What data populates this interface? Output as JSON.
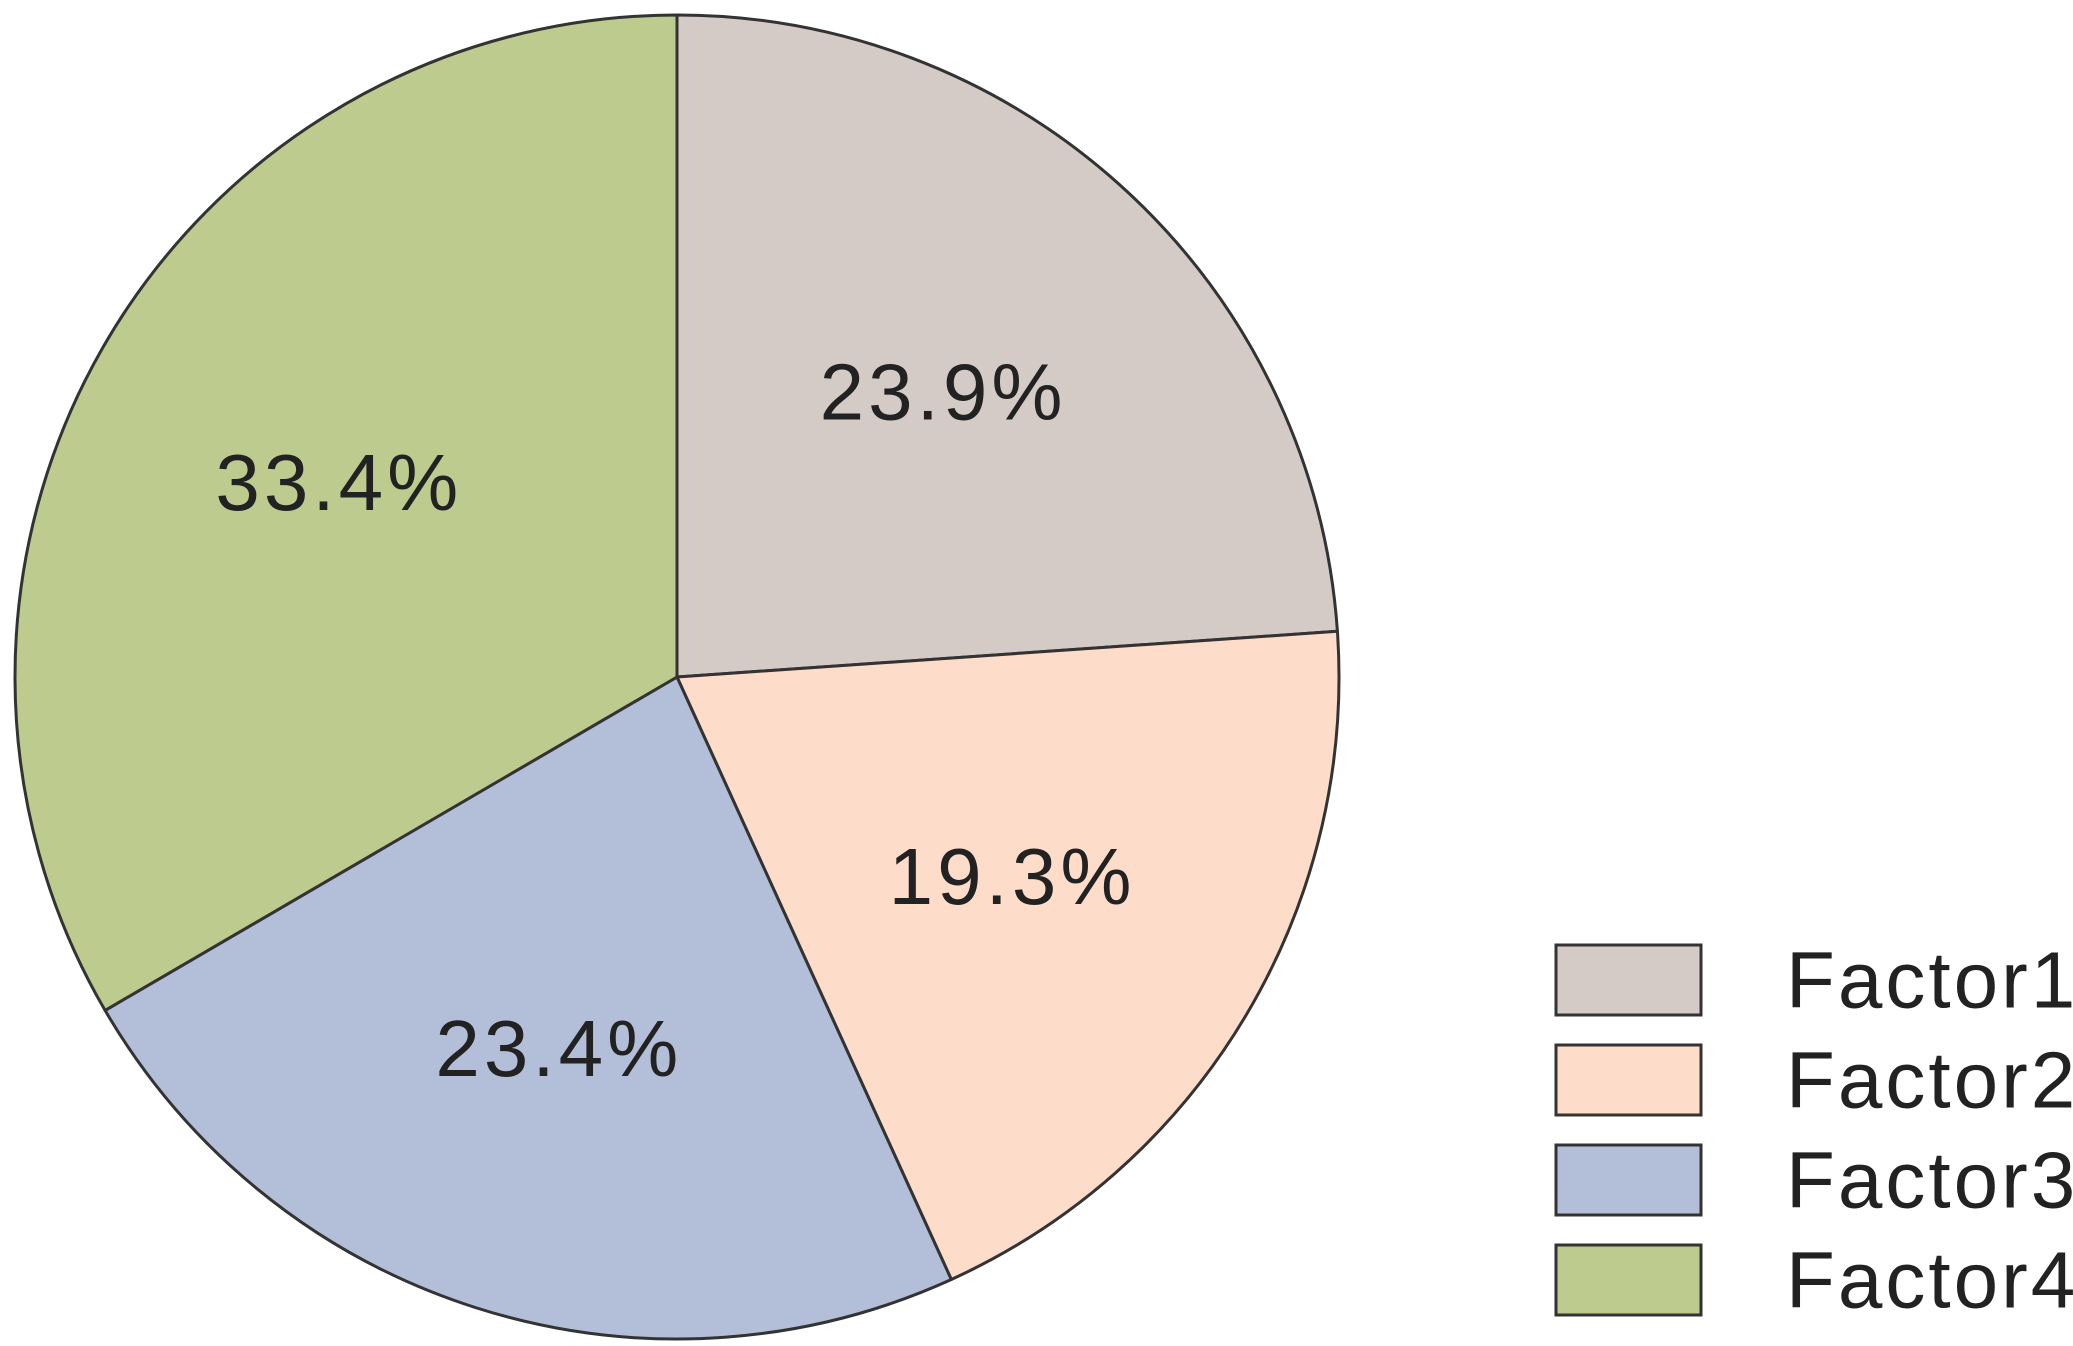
{
  "chart_data": {
    "type": "pie",
    "title": "",
    "start_angle_deg": 0,
    "direction": "clockwise",
    "legend_position": "bottom-right",
    "slices": [
      {
        "name": "Factor1",
        "value": 23.9,
        "label": "23.9%",
        "color": "#d4cbc6"
      },
      {
        "name": "Factor2",
        "value": 19.3,
        "label": "19.3%",
        "color": "#fddcc9"
      },
      {
        "name": "Factor3",
        "value": 23.4,
        "label": "23.4%",
        "color": "#b3bed9"
      },
      {
        "name": "Factor4",
        "value": 33.4,
        "label": "33.4%",
        "color": "#bdcb8f"
      }
    ],
    "edge_color": "#333333"
  }
}
